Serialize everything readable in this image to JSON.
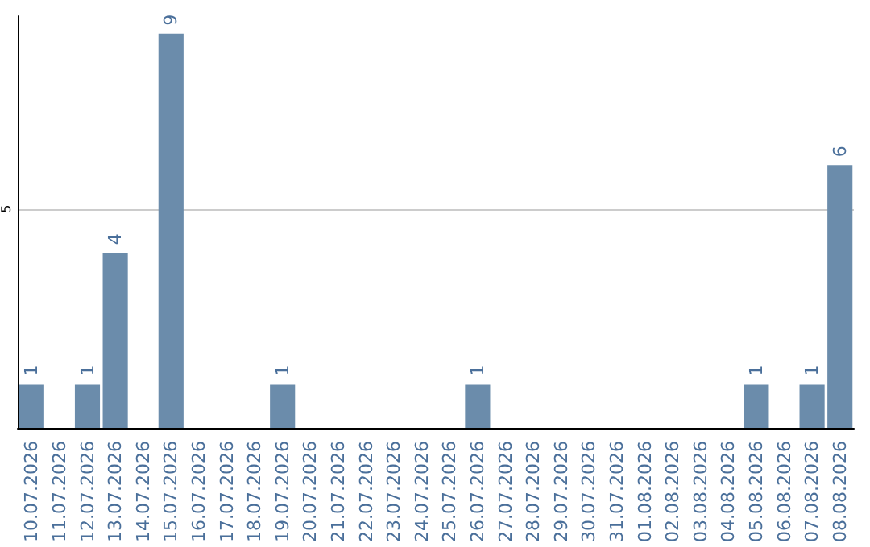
{
  "chart_data": {
    "type": "bar",
    "categories": [
      "10.07.2026",
      "11.07.2026",
      "12.07.2026",
      "13.07.2026",
      "14.07.2026",
      "15.07.2026",
      "16.07.2026",
      "17.07.2026",
      "18.07.2026",
      "19.07.2026",
      "20.07.2026",
      "21.07.2026",
      "22.07.2026",
      "23.07.2026",
      "24.07.2026",
      "25.07.2026",
      "26.07.2026",
      "27.07.2026",
      "28.07.2026",
      "29.07.2026",
      "30.07.2026",
      "31.07.2026",
      "01.08.2026",
      "02.08.2026",
      "03.08.2026",
      "04.08.2026",
      "05.08.2026",
      "06.08.2026",
      "07.08.2026",
      "08.08.2026"
    ],
    "values": [
      1,
      0,
      1,
      4,
      0,
      9,
      0,
      0,
      0,
      1,
      0,
      0,
      0,
      0,
      0,
      0,
      1,
      0,
      0,
      0,
      0,
      0,
      0,
      0,
      0,
      0,
      1,
      0,
      1,
      6
    ],
    "value_labels": [
      "1",
      null,
      "1",
      "4",
      null,
      "9",
      null,
      null,
      null,
      "1",
      null,
      null,
      null,
      null,
      null,
      null,
      "1",
      null,
      null,
      null,
      null,
      null,
      null,
      null,
      null,
      null,
      "1",
      null,
      "1",
      "6"
    ],
    "color": "#6b8cab",
    "ylim": [
      0,
      9.4
    ],
    "yticks": [
      {
        "value": 0,
        "label": null
      },
      5
    ],
    "grid": "y"
  }
}
